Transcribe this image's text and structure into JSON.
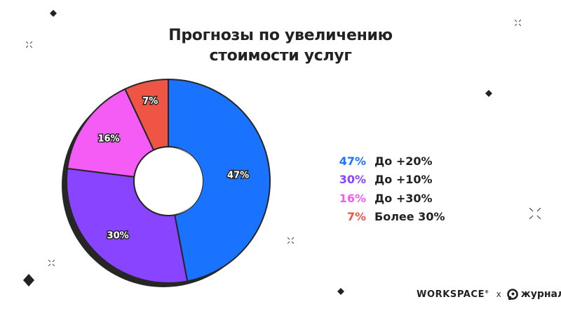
{
  "title": {
    "line1": "Прогнозы по увеличению",
    "line2": "стоимости услуг"
  },
  "chart_data": {
    "type": "pie",
    "variant": "donut",
    "title": "Прогнозы по увеличению стоимости услуг",
    "categories": [
      "До +20%",
      "До +10%",
      "До +30%",
      "Более 30%"
    ],
    "values": [
      47,
      30,
      16,
      7
    ],
    "labels": [
      "47%",
      "30%",
      "16%",
      "7%"
    ],
    "colors": [
      "#1A73FF",
      "#8844FF",
      "#F55CF5",
      "#EE5545"
    ],
    "start_angle": "12 o'clock",
    "direction": "clockwise",
    "legend_position": "right"
  },
  "legend": [
    {
      "pct": "47%",
      "label": "До +20%",
      "color": "#1A73FF"
    },
    {
      "pct": "30%",
      "label": "До +10%",
      "color": "#8844FF"
    },
    {
      "pct": "16%",
      "label": "До +30%",
      "color": "#F55CF5"
    },
    {
      "pct": "7%",
      "label": "Более 30%",
      "color": "#EE5545"
    }
  ],
  "footer": {
    "brand1": "WORKSPACE",
    "brand1_mark": "®",
    "separator": "x",
    "brand2": "журнал"
  }
}
